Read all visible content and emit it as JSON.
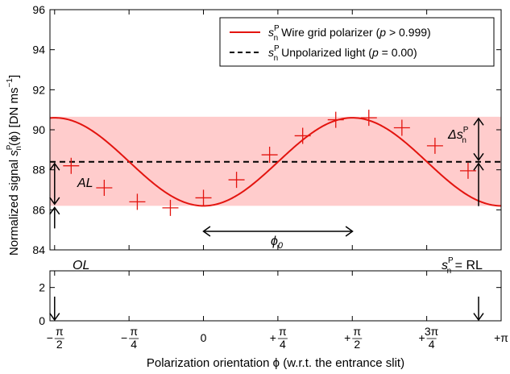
{
  "chart_data": {
    "type": "line",
    "colors": {
      "fit": "#e3140f",
      "band": "#ffcccc",
      "unpolarized": "#000000",
      "markers": "#e3140f"
    },
    "xlabel": "Polarization orientation ϕ (w.r.t. the entrance slit)",
    "ylabel_parts": [
      "Normalized signal ",
      "s",
      "n",
      "P",
      "(ϕ) [DN  ms",
      "−1",
      "]"
    ],
    "x_range": [
      -1.62,
      3.1416
    ],
    "y_upper_range": [
      84,
      96
    ],
    "y_lower_range": [
      0,
      3
    ],
    "upper_y_ticks": [
      "84",
      "86",
      "88",
      "90",
      "92",
      "94",
      "96"
    ],
    "lower_y_ticks": [
      "0",
      "2"
    ],
    "x_ticks": [
      {
        "x": -1.5708,
        "label": "−π/2"
      },
      {
        "x": -0.7854,
        "label": "−π/4"
      },
      {
        "x": 0,
        "label": "0"
      },
      {
        "x": 0.7854,
        "label": "+π/4"
      },
      {
        "x": 1.5708,
        "label": "+π/2"
      },
      {
        "x": 2.3562,
        "label": "+3π/4"
      },
      {
        "x": 3.1416,
        "label": "+π"
      }
    ],
    "fit_curve": {
      "formula": "y = 88.4 + 2.2*cos(2*(phi - 1.573))",
      "mean": 88.4,
      "amplitude": 2.2,
      "phi0": 1.573
    },
    "measurements": {
      "x": [
        -1.3963,
        -1.0472,
        -0.6981,
        -0.3491,
        0.0,
        0.3491,
        0.6981,
        1.0472,
        1.3963,
        1.7453,
        2.0944,
        2.4435,
        2.7925
      ],
      "y": [
        88.2,
        87.1,
        86.4,
        86.1,
        86.6,
        87.5,
        88.75,
        89.7,
        90.5,
        90.6,
        90.1,
        89.2,
        87.95
      ]
    },
    "unpolarized_level": 88.4,
    "band": [
      86.2,
      90.65
    ],
    "legend": {
      "placement": "top-right",
      "entries": [
        {
          "pre": "s",
          "sub": "n",
          "sup": "P",
          "text": " Wire grid polarizer (",
          "italic": "p",
          "rest": " > 0.999)"
        },
        {
          "pre": "s",
          "sub": "n",
          "sup": "P",
          "text": " Unpolarized light (",
          "italic": "p",
          "rest": " = 0.00)"
        }
      ]
    },
    "annotations": {
      "al": "AL",
      "ol": "OL",
      "phi0": "ϕ",
      "phi0_sub": "0",
      "delta_pre": "Δs",
      "delta_sub": "n",
      "delta_sup": "P",
      "rl_pre": "s",
      "rl_sub": "n",
      "rl_sup": "P",
      "rl_rest": " = RL"
    }
  }
}
